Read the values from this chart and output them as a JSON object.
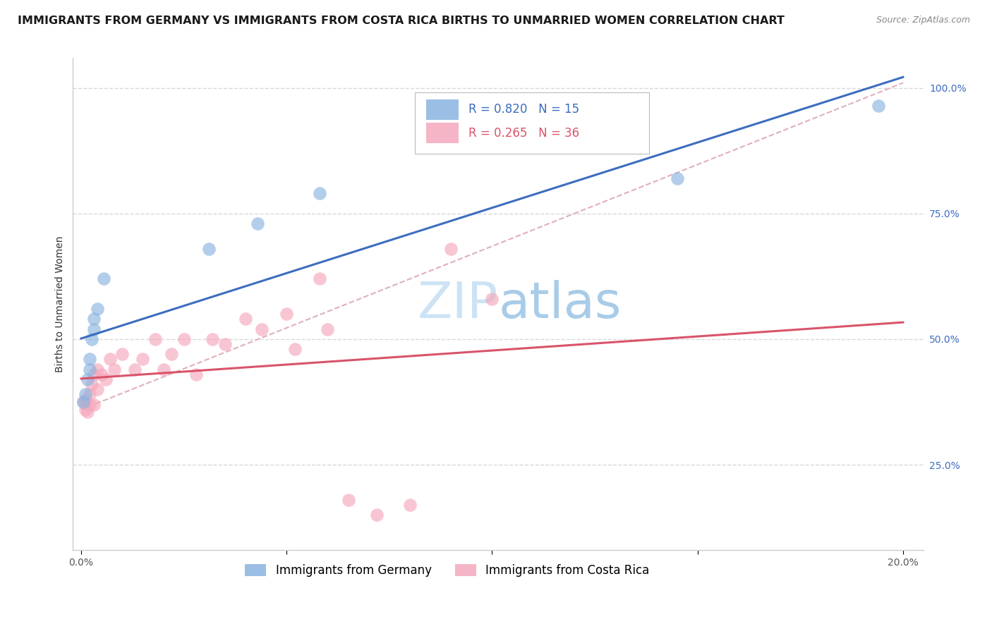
{
  "title": "IMMIGRANTS FROM GERMANY VS IMMIGRANTS FROM COSTA RICA BIRTHS TO UNMARRIED WOMEN CORRELATION CHART",
  "source": "Source: ZipAtlas.com",
  "ylabel": "Births to Unmarried Women",
  "legend_germany": "Immigrants from Germany",
  "legend_costa_rica": "Immigrants from Costa Rica",
  "r_germany": 0.82,
  "n_germany": 15,
  "r_costa_rica": 0.265,
  "n_costa_rica": 36,
  "xlim": [
    -0.002,
    0.205
  ],
  "ylim": [
    0.08,
    1.06
  ],
  "germany_color": "#8ab4e0",
  "costa_rica_color": "#f5a8bc",
  "trend_germany_color": "#3c6dbf",
  "trend_costa_rica_color": "#d9546a",
  "diagonal_color": "#e0b0b8",
  "background_color": "#ffffff",
  "grid_color": "#d8d8d8",
  "scatter_germany_x": [
    0.0005,
    0.001,
    0.0015,
    0.002,
    0.002,
    0.0025,
    0.003,
    0.003,
    0.004,
    0.0055,
    0.031,
    0.043,
    0.058,
    0.145,
    0.194
  ],
  "scatter_germany_y": [
    0.375,
    0.39,
    0.42,
    0.44,
    0.46,
    0.5,
    0.52,
    0.54,
    0.56,
    0.62,
    0.68,
    0.73,
    0.79,
    0.82,
    0.965
  ],
  "scatter_costa_rica_x": [
    0.0005,
    0.001,
    0.001,
    0.0015,
    0.002,
    0.002,
    0.0025,
    0.003,
    0.003,
    0.004,
    0.004,
    0.005,
    0.006,
    0.007,
    0.008,
    0.01,
    0.013,
    0.015,
    0.018,
    0.02,
    0.022,
    0.025,
    0.028,
    0.032,
    0.035,
    0.04,
    0.044,
    0.05,
    0.058,
    0.065,
    0.072,
    0.08,
    0.09,
    0.1,
    0.052,
    0.06
  ],
  "scatter_costa_rica_y": [
    0.375,
    0.38,
    0.36,
    0.355,
    0.37,
    0.39,
    0.41,
    0.37,
    0.43,
    0.4,
    0.44,
    0.43,
    0.42,
    0.46,
    0.44,
    0.47,
    0.44,
    0.46,
    0.5,
    0.44,
    0.47,
    0.5,
    0.43,
    0.5,
    0.49,
    0.54,
    0.52,
    0.55,
    0.62,
    0.18,
    0.15,
    0.17,
    0.68,
    0.58,
    0.48,
    0.52
  ],
  "title_fontsize": 11.5,
  "label_fontsize": 10,
  "tick_fontsize": 10,
  "legend_fontsize": 12,
  "watermark_fontsize": 52
}
